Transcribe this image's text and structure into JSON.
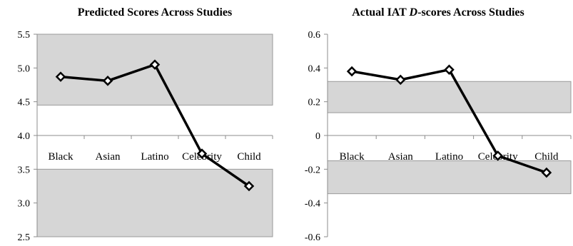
{
  "chart_data": [
    {
      "type": "line",
      "title": "Predicted Scores Across Studies",
      "title_parts": [
        "Predicted Scores Across Studies"
      ],
      "categories": [
        "Black",
        "Asian",
        "Latino",
        "Celebrity",
        "Child"
      ],
      "values": [
        4.87,
        4.81,
        5.05,
        3.73,
        3.25
      ],
      "ylim": [
        2.5,
        5.5
      ],
      "y_ticks": [
        "2.5",
        "3.0",
        "3.5",
        "4.0",
        "4.5",
        "5.0",
        "5.5"
      ],
      "y_tick_values": [
        2.5,
        3.0,
        3.5,
        4.0,
        4.5,
        5.0,
        5.5
      ],
      "x_axis_at": 4.0,
      "shaded_bands": [
        [
          4.45,
          5.5
        ],
        [
          2.5,
          3.5
        ]
      ],
      "xlabel": "",
      "ylabel": "",
      "grid": false,
      "marker": "diamond",
      "line_color": "#000000",
      "band_color": "#d6d6d6"
    },
    {
      "type": "line",
      "title": "Actual IAT D-scores Across Studies",
      "title_parts": [
        "Actual IAT ",
        "D",
        "-scores Across Studies"
      ],
      "categories": [
        "Black",
        "Asian",
        "Latino",
        "Celebrity",
        "Child"
      ],
      "values": [
        0.38,
        0.33,
        0.39,
        -0.12,
        -0.22
      ],
      "ylim": [
        -0.6,
        0.6
      ],
      "y_ticks": [
        "-0.6",
        "-0.4",
        "-0.2",
        "0",
        "0.2",
        "0.4",
        "0.6"
      ],
      "y_tick_values": [
        -0.6,
        -0.4,
        -0.2,
        0,
        0.2,
        0.4,
        0.6
      ],
      "x_axis_at": 0,
      "shaded_bands": [
        [
          0.135,
          0.32
        ],
        [
          -0.345,
          -0.15
        ]
      ],
      "xlabel": "",
      "ylabel": "",
      "grid": false,
      "marker": "diamond",
      "line_color": "#000000",
      "band_color": "#d6d6d6"
    }
  ]
}
